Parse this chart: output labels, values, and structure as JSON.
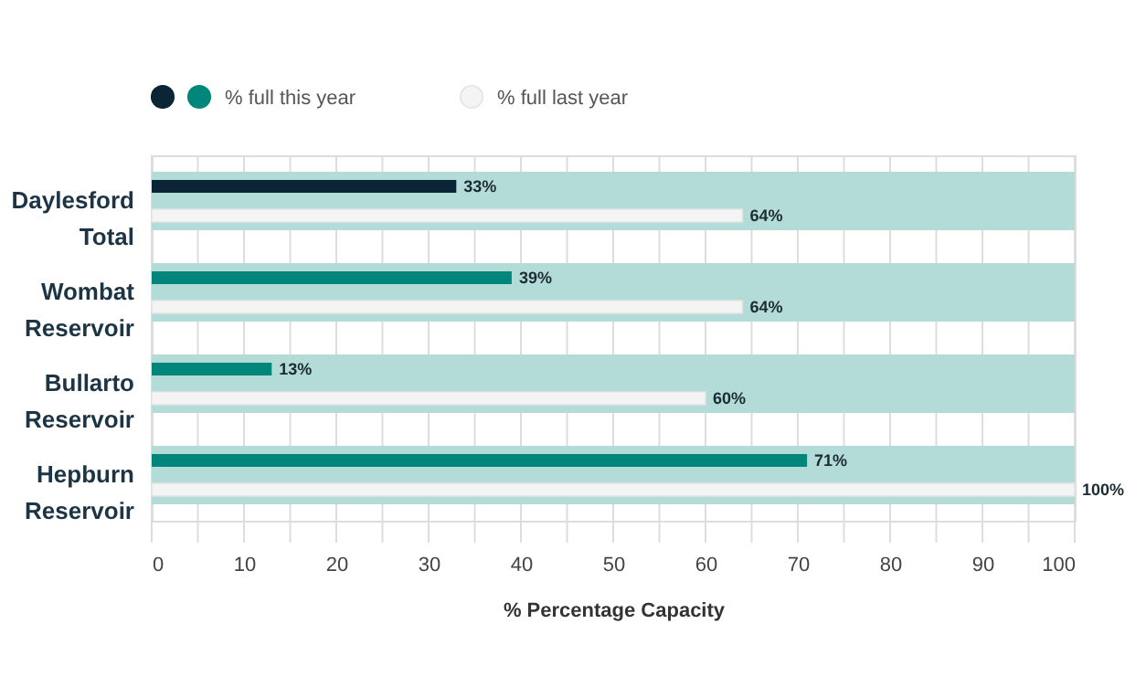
{
  "chart_data": {
    "type": "bar",
    "orientation": "horizontal",
    "categories": [
      "Daylesford Total",
      "Wombat Reservoir",
      "Bullarto Reservoir",
      "Hepburn Reservoir"
    ],
    "series": [
      {
        "color": "#b3dcd9",
        "values": [
          100,
          100,
          100,
          100
        ]
      },
      {
        "name": "% full this year",
        "colors": [
          "#0c2536",
          "#00867a",
          "#00867a",
          "#00867a"
        ],
        "values": [
          33,
          39,
          13,
          71
        ],
        "value_labels": [
          "33%",
          "39%",
          "13%",
          "71%"
        ]
      },
      {
        "name": "% full last year",
        "color": "#f4f4f4",
        "values": [
          64,
          64,
          60,
          100
        ],
        "value_labels": [
          "64%",
          "64%",
          "60%",
          "100%"
        ]
      }
    ],
    "xlabel": "% Percentage Capacity",
    "xlim": [
      0,
      100
    ],
    "xticks": [
      0,
      {
        "value": 5,
        "label": null
      },
      10,
      {
        "value": 15,
        "label": null
      },
      20,
      {
        "value": 25,
        "label": null
      },
      30,
      {
        "value": 35,
        "label": null
      },
      40,
      {
        "value": 45,
        "label": null
      },
      50,
      {
        "value": 55,
        "label": null
      },
      60,
      {
        "value": 65,
        "label": null
      },
      70,
      {
        "value": 75,
        "label": null
      },
      80,
      {
        "value": 85,
        "label": null
      },
      90,
      {
        "value": 95,
        "label": null
      },
      100
    ],
    "grid": true,
    "legend": "top left"
  }
}
